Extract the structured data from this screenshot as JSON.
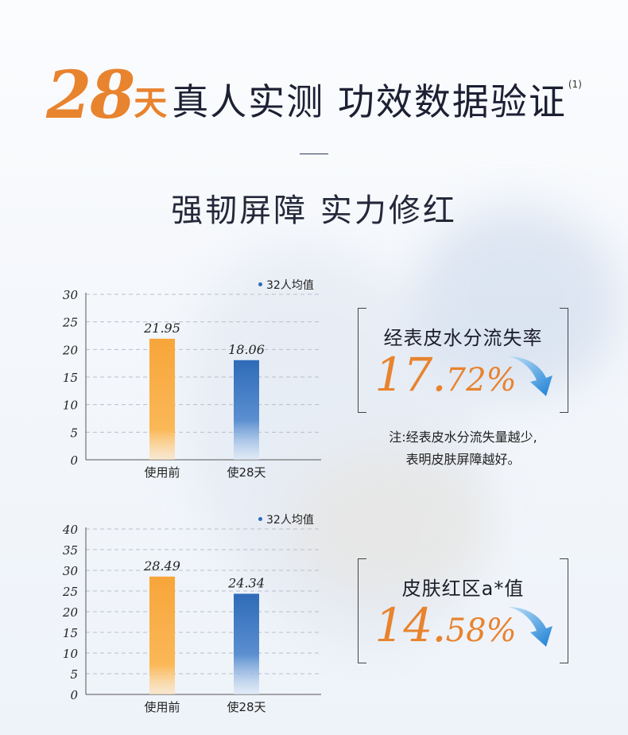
{
  "headline": {
    "days_number": "28",
    "days_unit": "天",
    "text": "真人实测 功效数据验证",
    "footnote_mark": "(1)"
  },
  "subtitle": "强韧屏障 实力修红",
  "colors": {
    "orange": "#e8832e",
    "blue": "#2f6bb8",
    "dark": "#1f2233"
  },
  "chart_data": [
    {
      "type": "bar",
      "categories": [
        "使用前",
        "使28天"
      ],
      "values": [
        21.95,
        18.06
      ],
      "value_labels": [
        "21.95",
        "18.06"
      ],
      "yticks": [
        "0",
        "5",
        "10",
        "15",
        "20",
        "25",
        "30"
      ],
      "ylim": [
        0,
        30
      ],
      "legend": "32人均值",
      "grid": true,
      "legend_position": "top-right"
    },
    {
      "type": "bar",
      "categories": [
        "使用前",
        "使28天"
      ],
      "values": [
        28.49,
        24.34
      ],
      "value_labels": [
        "28.49",
        "24.34"
      ],
      "yticks": [
        "0",
        "5",
        "10",
        "15",
        "20",
        "25",
        "30",
        "35",
        "40"
      ],
      "ylim": [
        0,
        40
      ],
      "legend": "32人均值",
      "grid": true,
      "legend_position": "top-right"
    }
  ],
  "cards": [
    {
      "label": "经表皮水分流失率",
      "value_int": "17.",
      "value_dec": "72%"
    },
    {
      "label": "皮肤红区a*值",
      "value_int": "14.",
      "value_dec": "58%"
    }
  ],
  "note": {
    "line1": "注:经表皮水分流失量越少,",
    "line2": "表明皮肤屏障越好。"
  },
  "icons": [
    "down-arrow-icon"
  ]
}
